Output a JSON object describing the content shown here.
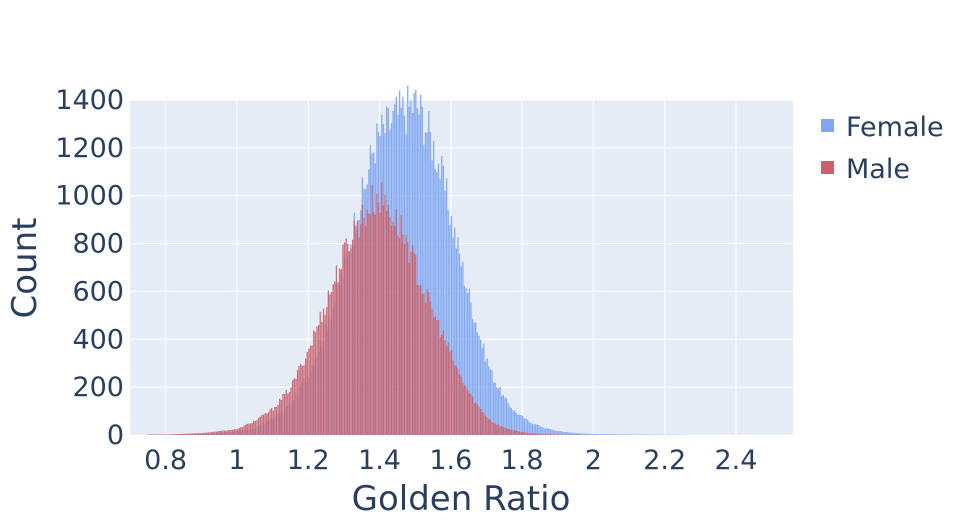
{
  "chart_data": {
    "type": "bar",
    "subtype": "overlaid-histogram",
    "title": "",
    "xlabel": "Golden Ratio",
    "ylabel": "Count",
    "xlim": [
      0.7,
      2.56
    ],
    "ylim": [
      0,
      1400
    ],
    "xticks": [
      "0.8",
      "1",
      "1.2",
      "1.4",
      "1.6",
      "1.8",
      "2",
      "2.2",
      "2.4"
    ],
    "xtick_values": [
      0.8,
      1.0,
      1.2,
      1.4,
      1.6,
      1.8,
      2.0,
      2.2,
      2.4
    ],
    "yticks": [
      "0",
      "200",
      "400",
      "600",
      "800",
      "1000",
      "1200",
      "1400"
    ],
    "ytick_values": [
      0,
      200,
      400,
      600,
      800,
      1000,
      1200,
      1400
    ],
    "grid": true,
    "legend_position": "top-right",
    "bin_width": 0.01,
    "series": [
      {
        "name": "Female",
        "color": "#636efa",
        "display_color": "#80a6f0",
        "x": [
          0.8,
          0.9,
          1.0,
          1.05,
          1.1,
          1.15,
          1.2,
          1.25,
          1.3,
          1.33,
          1.36,
          1.38,
          1.4,
          1.42,
          1.44,
          1.46,
          1.48,
          1.5,
          1.52,
          1.54,
          1.56,
          1.58,
          1.6,
          1.62,
          1.64,
          1.66,
          1.68,
          1.7,
          1.72,
          1.75,
          1.78,
          1.82,
          1.86,
          1.9,
          1.95,
          2.0,
          2.1,
          2.2,
          2.3
        ],
        "values": [
          2,
          5,
          15,
          30,
          70,
          130,
          260,
          450,
          700,
          900,
          1050,
          1200,
          1260,
          1290,
          1330,
          1350,
          1370,
          1390,
          1330,
          1250,
          1160,
          1040,
          900,
          770,
          640,
          520,
          410,
          310,
          230,
          150,
          95,
          55,
          30,
          16,
          8,
          4,
          2,
          1,
          0
        ]
      },
      {
        "name": "Male",
        "color": "#ef553b",
        "display_color": "#c9626c",
        "x": [
          0.8,
          0.9,
          1.0,
          1.05,
          1.1,
          1.15,
          1.2,
          1.25,
          1.3,
          1.33,
          1.36,
          1.38,
          1.4,
          1.42,
          1.44,
          1.46,
          1.48,
          1.5,
          1.52,
          1.54,
          1.56,
          1.58,
          1.6,
          1.62,
          1.64,
          1.66,
          1.68,
          1.7,
          1.72,
          1.75,
          1.78,
          1.82,
          1.86,
          1.9,
          1.95,
          2.0,
          2.1,
          2.2,
          2.3
        ],
        "values": [
          2,
          8,
          25,
          60,
          110,
          200,
          360,
          560,
          760,
          870,
          930,
          980,
          990,
          960,
          900,
          860,
          790,
          700,
          610,
          540,
          470,
          400,
          330,
          260,
          200,
          150,
          110,
          75,
          50,
          30,
          17,
          8,
          4,
          2,
          1,
          0,
          0,
          0,
          0
        ]
      }
    ]
  }
}
